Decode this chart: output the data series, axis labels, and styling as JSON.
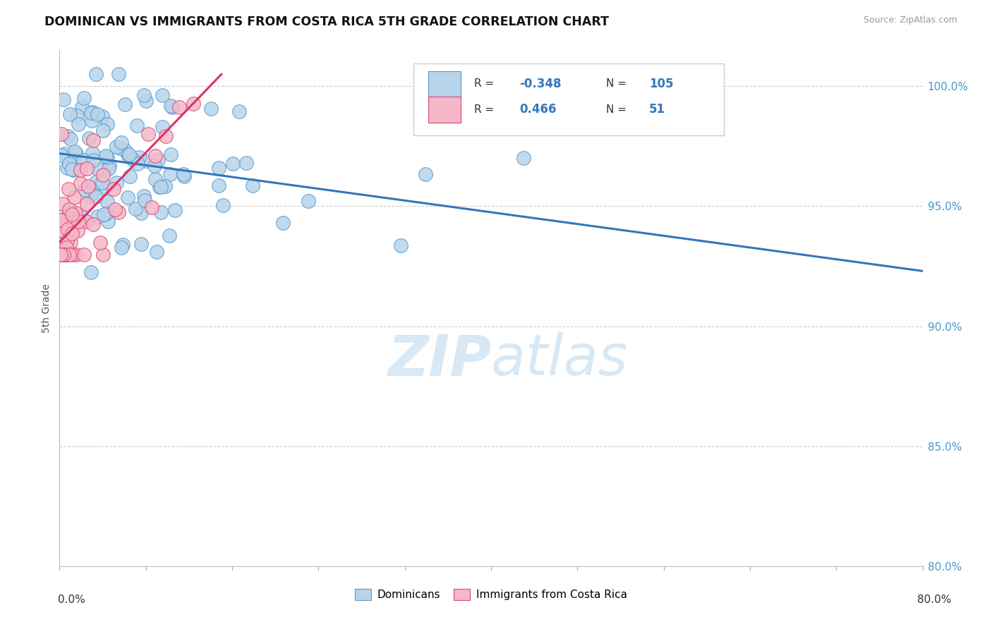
{
  "title": "DOMINICAN VS IMMIGRANTS FROM COSTA RICA 5TH GRADE CORRELATION CHART",
  "source": "Source: ZipAtlas.com",
  "ylabel": "5th Grade",
  "yaxis_ticks": [
    80.0,
    85.0,
    90.0,
    95.0,
    100.0
  ],
  "yaxis_labels": [
    "80.0%",
    "85.0%",
    "90.0%",
    "95.0%",
    "100.0%"
  ],
  "xlim": [
    0.0,
    80.0
  ],
  "ylim": [
    80.0,
    101.5
  ],
  "blue_R": -0.348,
  "blue_N": 105,
  "pink_R": 0.466,
  "pink_N": 51,
  "legend_label_blue": "Dominicans",
  "legend_label_pink": "Immigrants from Costa Rica",
  "blue_color": "#b8d4ea",
  "pink_color": "#f4b8c8",
  "blue_edge_color": "#5599cc",
  "pink_edge_color": "#dd4477",
  "blue_line_color": "#3377bb",
  "pink_line_color": "#dd3366",
  "watermark_color": "#c8dff0",
  "background_color": "#ffffff",
  "grid_color": "#cccccc",
  "blue_trend_x0": 0.0,
  "blue_trend_y0": 97.2,
  "blue_trend_x1": 80.0,
  "blue_trend_y1": 92.3,
  "pink_trend_x0": 0.0,
  "pink_trend_y0": 93.5,
  "pink_trend_x1": 15.0,
  "pink_trend_y1": 100.5
}
